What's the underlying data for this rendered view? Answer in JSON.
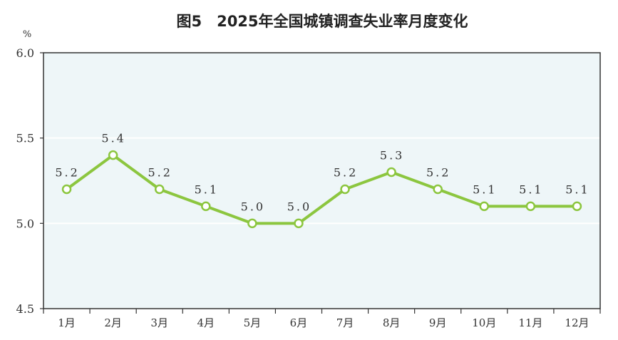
{
  "chart_data": {
    "type": "line",
    "title": "图5　2025年全国城镇调查失业率月度变化",
    "unit_label": "%",
    "categories": [
      "1月",
      "2月",
      "3月",
      "4月",
      "5月",
      "6月",
      "7月",
      "8月",
      "9月",
      "10月",
      "11月",
      "12月"
    ],
    "values": [
      5.2,
      5.4,
      5.2,
      5.1,
      5.0,
      5.0,
      5.2,
      5.3,
      5.2,
      5.1,
      5.1,
      5.1
    ],
    "data_labels": [
      "5.2",
      "5.4",
      "5.2",
      "5.1",
      "5.0",
      "5.0",
      "5.2",
      "5.3",
      "5.2",
      "5.1",
      "5.1",
      "5.1"
    ],
    "ylim": [
      4.5,
      6.0
    ],
    "yticks": [
      4.5,
      5.0,
      5.5,
      6.0
    ],
    "ytick_labels": [
      "4.5",
      "5.0",
      "5.5",
      "6.0"
    ],
    "grid": true,
    "colors": {
      "line": "#8cc63f",
      "marker_fill": "#ffffff",
      "plot_background": "#eef6f8",
      "grid": "#ffffff",
      "frame": "#333333"
    }
  }
}
